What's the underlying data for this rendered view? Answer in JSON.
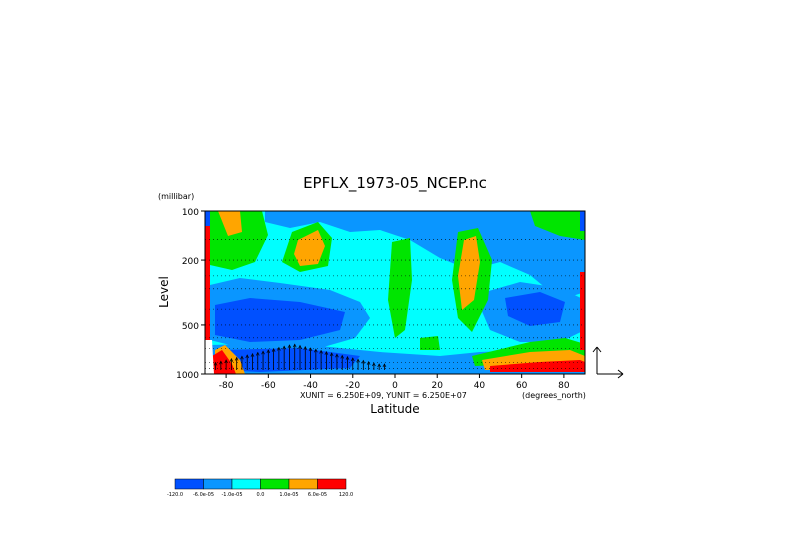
{
  "chart_data": {
    "type": "heatmap",
    "title": "EPFLX_1973-05_NCEP.nc",
    "xlabel": "Latitude",
    "ylabel": "Level",
    "y_units": "(millibar)",
    "x_units": "(degrees_north)",
    "unit_note": "XUNIT = 6.250E+09, YUNIT = 6.250E+07",
    "x_ticks": [
      -80,
      -60,
      -40,
      -20,
      0,
      20,
      40,
      60,
      80
    ],
    "x_tick_labels": [
      "-80",
      "-60",
      "-40",
      "-20",
      "0",
      "20",
      "40",
      "60",
      "80"
    ],
    "xlim": [
      -90,
      90
    ],
    "y_ticks": [
      100,
      200,
      500,
      1000
    ],
    "y_tick_labels": [
      "100",
      "200",
      "500",
      "1000"
    ],
    "ylim": [
      1000,
      100
    ],
    "y_scale": "log",
    "grid": true,
    "colorbar": {
      "levels": [
        -120,
        -6e-05,
        -1e-05,
        0,
        1e-05,
        6e-05,
        120
      ],
      "labels": [
        "-120.0",
        "-6.0e-05",
        "-1.0e-05",
        "0.0",
        "1.0e-05",
        "6.0e-05",
        "120.0"
      ],
      "colors": [
        "#0050ff",
        "#0a96ff",
        "#00ffff",
        "#00e500",
        "#ffa500",
        "#ff0000"
      ]
    }
  }
}
